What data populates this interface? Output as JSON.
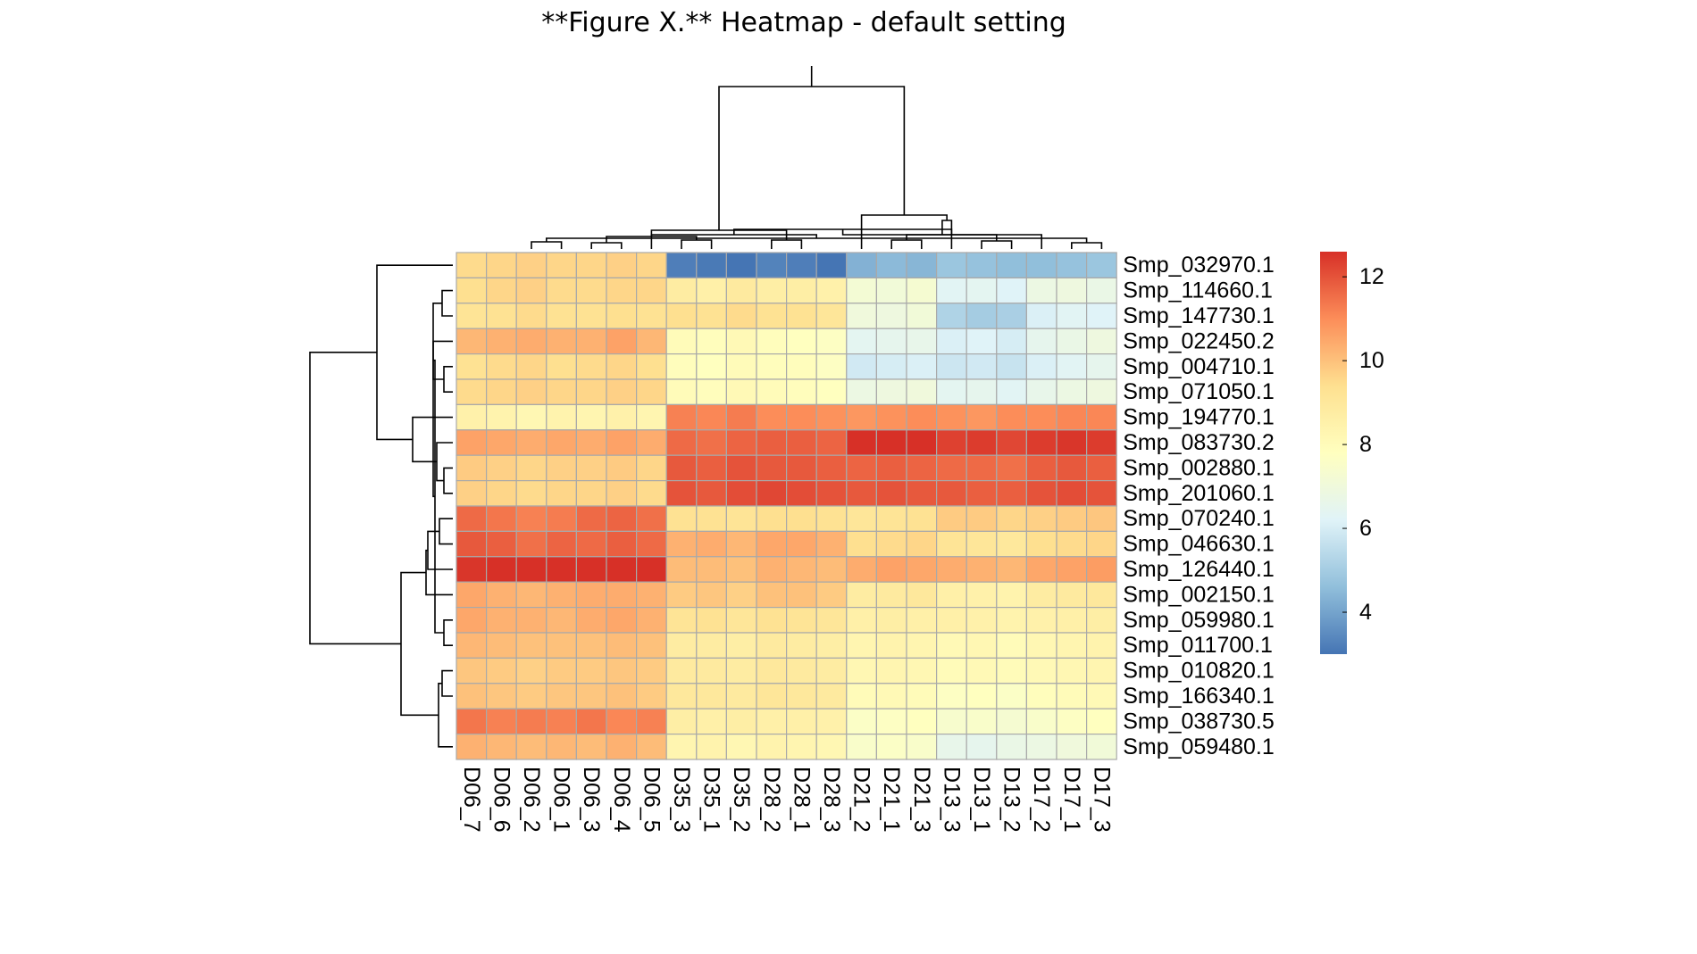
{
  "figure": {
    "title": "**Figure X.** Heatmap - default setting"
  },
  "chart_data": {
    "type": "heatmap",
    "title": "**Figure X.** Heatmap - default setting",
    "rows": [
      "Smp_032970.1",
      "Smp_114660.1",
      "Smp_147730.1",
      "Smp_022450.2",
      "Smp_004710.1",
      "Smp_071050.1",
      "Smp_194770.1",
      "Smp_083730.2",
      "Smp_002880.1",
      "Smp_201060.1",
      "Smp_070240.1",
      "Smp_046630.1",
      "Smp_126440.1",
      "Smp_002150.1",
      "Smp_059980.1",
      "Smp_011700.1",
      "Smp_010820.1",
      "Smp_166340.1",
      "Smp_038730.5",
      "Smp_059480.1"
    ],
    "columns": [
      "D06_7",
      "D06_6",
      "D06_2",
      "D06_1",
      "D06_3",
      "D06_4",
      "D06_5",
      "D35_3",
      "D35_1",
      "D35_2",
      "D28_2",
      "D28_1",
      "D28_3",
      "D21_2",
      "D21_1",
      "D21_3",
      "D13_3",
      "D13_1",
      "D13_2",
      "D17_2",
      "D17_1",
      "D17_3"
    ],
    "values": [
      [
        9.5,
        9.6,
        9.7,
        9.6,
        9.6,
        9.7,
        9.6,
        3.2,
        3.1,
        3.0,
        3.3,
        3.2,
        3.0,
        4.3,
        4.5,
        4.4,
        4.8,
        4.7,
        4.6,
        4.6,
        4.7,
        4.8
      ],
      [
        9.4,
        9.6,
        9.7,
        9.5,
        9.5,
        9.6,
        9.6,
        8.8,
        8.6,
        8.9,
        8.7,
        8.7,
        8.5,
        7.2,
        7.1,
        7.3,
        6.3,
        6.4,
        6.2,
        6.8,
        6.9,
        6.7
      ],
      [
        9.2,
        9.3,
        9.5,
        9.3,
        9.3,
        9.4,
        9.3,
        9.4,
        9.3,
        9.5,
        9.3,
        9.3,
        9.1,
        7.0,
        6.9,
        7.1,
        5.2,
        5.0,
        5.1,
        6.1,
        6.3,
        6.2
      ],
      [
        10.2,
        10.3,
        10.4,
        10.3,
        10.3,
        10.6,
        10.2,
        8.0,
        7.9,
        8.1,
        7.9,
        7.8,
        7.7,
        6.4,
        6.5,
        6.6,
        6.1,
        6.2,
        6.0,
        6.5,
        6.7,
        6.9
      ],
      [
        9.3,
        9.5,
        9.6,
        9.4,
        9.5,
        9.6,
        9.4,
        7.9,
        7.8,
        8.0,
        7.9,
        7.9,
        7.7,
        5.9,
        6.0,
        6.1,
        5.8,
        5.9,
        5.7,
        6.1,
        6.3,
        6.5
      ],
      [
        9.5,
        9.6,
        9.7,
        9.6,
        9.6,
        9.7,
        9.6,
        8.0,
        7.9,
        8.1,
        8.0,
        7.9,
        7.8,
        6.8,
        6.9,
        7.0,
        6.4,
        6.5,
        6.3,
        6.6,
        6.8,
        6.9
      ],
      [
        8.5,
        8.4,
        8.2,
        8.4,
        8.3,
        8.5,
        8.3,
        11.2,
        11.1,
        11.3,
        11.0,
        11.0,
        10.9,
        10.8,
        10.9,
        11.0,
        10.9,
        10.8,
        11.0,
        11.0,
        11.1,
        11.1
      ],
      [
        10.6,
        10.5,
        10.4,
        10.5,
        10.4,
        10.6,
        10.4,
        11.6,
        11.5,
        11.7,
        11.8,
        11.8,
        11.7,
        12.6,
        12.7,
        12.6,
        12.3,
        12.4,
        12.2,
        12.4,
        12.5,
        12.4
      ],
      [
        9.8,
        9.7,
        9.6,
        9.7,
        9.7,
        9.8,
        9.6,
        11.9,
        11.8,
        12.0,
        11.9,
        11.9,
        11.8,
        11.7,
        11.8,
        11.7,
        11.6,
        11.6,
        11.5,
        11.8,
        11.9,
        11.8
      ],
      [
        9.7,
        9.6,
        9.5,
        9.6,
        9.6,
        9.7,
        9.5,
        12.0,
        11.9,
        12.1,
        12.2,
        12.1,
        12.0,
        11.9,
        12.0,
        11.9,
        11.9,
        11.8,
        11.8,
        12.0,
        12.1,
        12.0
      ],
      [
        11.6,
        11.4,
        11.2,
        11.3,
        11.6,
        11.7,
        11.5,
        9.3,
        9.3,
        9.2,
        9.4,
        9.4,
        9.3,
        9.1,
        9.2,
        9.3,
        9.8,
        9.8,
        9.6,
        9.7,
        9.8,
        9.9
      ],
      [
        11.9,
        11.8,
        11.5,
        11.7,
        11.6,
        11.8,
        11.6,
        10.3,
        10.4,
        10.2,
        10.5,
        10.5,
        10.3,
        9.4,
        9.5,
        9.6,
        9.2,
        9.1,
        9.0,
        9.4,
        9.5,
        9.6
      ],
      [
        12.5,
        12.7,
        12.6,
        12.8,
        12.7,
        12.8,
        12.6,
        10.1,
        10.1,
        10.0,
        10.3,
        10.2,
        10.1,
        10.4,
        10.6,
        10.5,
        10.4,
        10.3,
        10.2,
        10.5,
        10.6,
        10.7
      ],
      [
        10.5,
        10.3,
        10.2,
        10.3,
        10.4,
        10.4,
        10.3,
        9.8,
        9.9,
        9.7,
        10.0,
        10.0,
        9.8,
        8.8,
        8.9,
        9.0,
        8.6,
        8.5,
        8.4,
        8.8,
        8.9,
        9.0
      ],
      [
        10.5,
        10.3,
        10.3,
        10.2,
        10.4,
        10.5,
        10.3,
        9.2,
        9.3,
        9.1,
        9.3,
        9.2,
        9.1,
        8.6,
        8.7,
        8.6,
        8.6,
        8.5,
        8.4,
        8.5,
        8.6,
        8.7
      ],
      [
        10.2,
        10.1,
        10.0,
        10.0,
        10.0,
        10.1,
        10.0,
        8.8,
        8.8,
        8.7,
        8.9,
        8.8,
        8.7,
        8.3,
        8.4,
        8.3,
        8.1,
        8.2,
        8.0,
        8.2,
        8.3,
        8.4
      ],
      [
        9.9,
        9.8,
        9.7,
        9.8,
        9.8,
        9.9,
        9.8,
        8.9,
        8.9,
        8.8,
        9.0,
        8.9,
        8.8,
        8.2,
        8.3,
        8.2,
        8.0,
        8.1,
        8.0,
        8.1,
        8.2,
        8.3
      ],
      [
        10.0,
        9.9,
        9.8,
        9.9,
        9.9,
        10.0,
        9.8,
        9.0,
        9.0,
        8.9,
        9.1,
        9.0,
        8.9,
        8.0,
        8.1,
        8.0,
        7.7,
        7.8,
        7.6,
        7.9,
        8.0,
        8.1
      ],
      [
        11.4,
        11.2,
        11.3,
        11.2,
        11.4,
        11.1,
        11.2,
        8.7,
        8.6,
        8.7,
        8.6,
        8.6,
        8.5,
        7.6,
        7.7,
        7.8,
        7.4,
        7.5,
        7.3,
        7.5,
        7.7,
        7.8
      ],
      [
        10.3,
        10.2,
        10.1,
        10.2,
        10.1,
        10.3,
        10.1,
        8.3,
        8.4,
        8.2,
        8.4,
        8.3,
        8.2,
        7.5,
        7.6,
        7.5,
        6.6,
        6.5,
        6.7,
        6.8,
        7.0,
        7.1
      ]
    ],
    "color_scale": {
      "range": [
        3,
        12.6
      ],
      "stops": [
        "#4575b4",
        "#91bfdb",
        "#e0f3f8",
        "#ffffbf",
        "#fee090",
        "#fc8d59",
        "#d73027"
      ]
    },
    "legend": {
      "ticks": [
        4,
        6,
        8,
        10,
        12
      ],
      "tick_labels": [
        "4",
        "6",
        "8",
        "10",
        "12"
      ],
      "position": "right"
    },
    "dendrograms": {
      "rows": "left",
      "columns": "top"
    }
  }
}
